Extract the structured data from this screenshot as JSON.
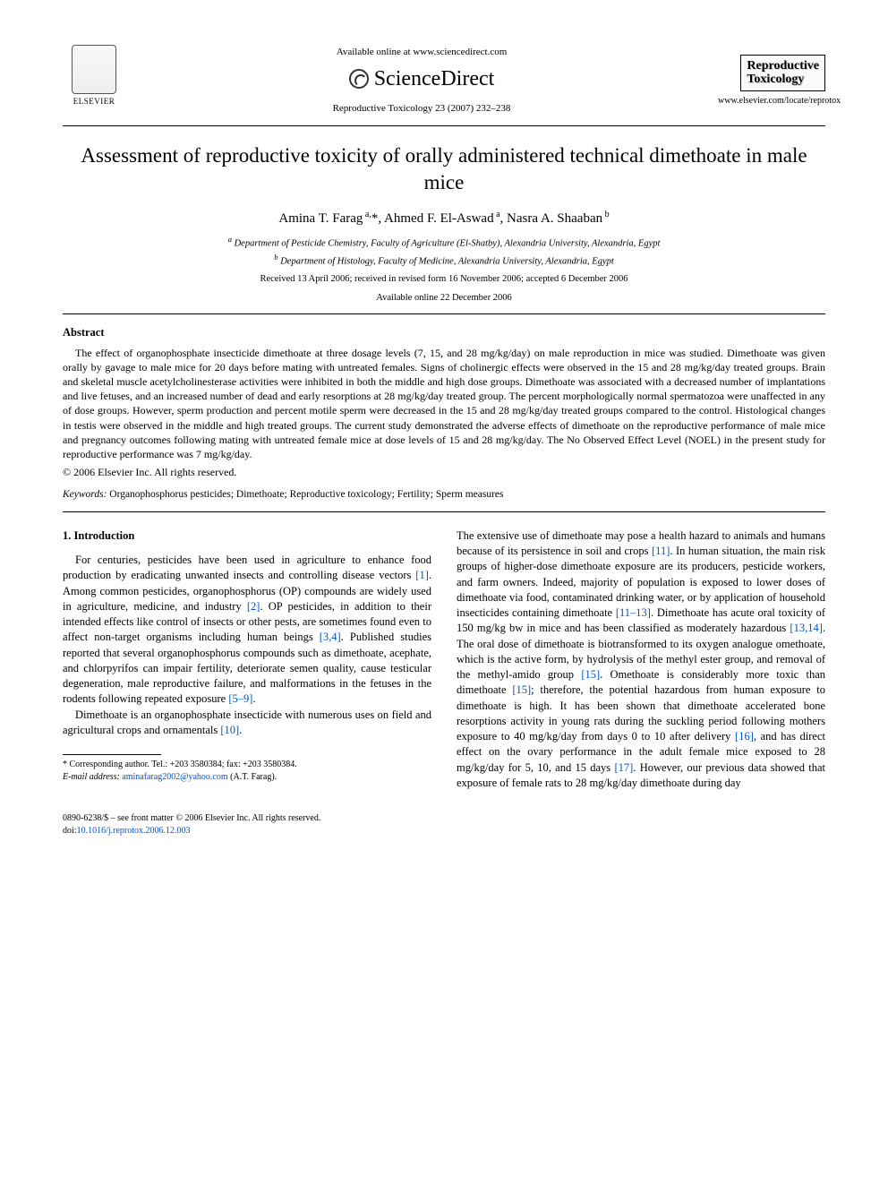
{
  "header": {
    "elsevier_label": "ELSEVIER",
    "available_line": "Available online at www.sciencedirect.com",
    "sd_brand": "ScienceDirect",
    "journal_ref": "Reproductive Toxicology 23 (2007) 232–238",
    "journal_box_line1": "Reproductive",
    "journal_box_line2": "Toxicology",
    "journal_url": "www.elsevier.com/locate/reprotox"
  },
  "title": "Assessment of reproductive toxicity of orally administered technical dimethoate in male mice",
  "authors_html": "Amina T. Farag <sup>a,</sup>*, Ahmed F. El-Aswad <sup>a</sup>, Nasra A. Shaaban <sup>b</sup>",
  "affiliations": {
    "a": "Department of Pesticide Chemistry, Faculty of Agriculture (El-Shatby), Alexandria University, Alexandria, Egypt",
    "b": "Department of Histology, Faculty of Medicine, Alexandria University, Alexandria, Egypt"
  },
  "dates": {
    "received": "Received 13 April 2006; received in revised form 16 November 2006; accepted 6 December 2006",
    "online": "Available online 22 December 2006"
  },
  "abstract_heading": "Abstract",
  "abstract_body": "The effect of organophosphate insecticide dimethoate at three dosage levels (7, 15, and 28 mg/kg/day) on male reproduction in mice was studied. Dimethoate was given orally by gavage to male mice for 20 days before mating with untreated females. Signs of cholinergic effects were observed in the 15 and 28 mg/kg/day treated groups. Brain and skeletal muscle acetylcholinesterase activities were inhibited in both the middle and high dose groups. Dimethoate was associated with a decreased number of implantations and live fetuses, and an increased number of dead and early resorptions at 28 mg/kg/day treated group. The percent morphologically normal spermatozoa were unaffected in any of dose groups. However, sperm production and percent motile sperm were decreased in the 15 and 28 mg/kg/day treated groups compared to the control. Histological changes in testis were observed in the middle and high treated groups. The current study demonstrated the adverse effects of dimethoate on the reproductive performance of male mice and pregnancy outcomes following mating with untreated female mice at dose levels of 15 and 28 mg/kg/day. The No Observed Effect Level (NOEL) in the present study for reproductive performance was 7 mg/kg/day.",
  "copyright": "© 2006 Elsevier Inc. All rights reserved.",
  "keywords_label": "Keywords:",
  "keywords": "Organophosphorus pesticides; Dimethoate; Reproductive toxicology; Fertility; Sperm measures",
  "intro_heading": "1.  Introduction",
  "intro_col1_p1_a": "For centuries, pesticides have been used in agriculture to enhance food production by eradicating unwanted insects and controlling disease vectors ",
  "intro_col1_p1_cite1": "[1]",
  "intro_col1_p1_b": ". Among common pesticides, organophosphorus (OP) compounds are widely used in agriculture, medicine, and industry ",
  "intro_col1_p1_cite2": "[2]",
  "intro_col1_p1_c": ". OP pesticides, in addition to their intended effects like control of insects or other pests, are sometimes found even to affect non-target organisms including human beings ",
  "intro_col1_p1_cite3": "[3,4]",
  "intro_col1_p1_d": ". Published studies reported that several organophosphorus compounds such as dimethoate, acephate, and chlorpyrifos can impair fertility, deteriorate semen quality, cause testicular degeneration, male reproductive failure, and malformations in the fetuses in the rodents following repeated exposure ",
  "intro_col1_p1_cite4": "[5–9]",
  "intro_col1_p1_e": ".",
  "intro_col1_p2_a": "Dimethoate is an organophosphate insecticide with numerous uses on field and agricultural crops and ornamentals ",
  "intro_col1_p2_cite1": "[10]",
  "intro_col1_p2_b": ".",
  "intro_col2_a": "The extensive use of dimethoate may pose a health hazard to animals and humans because of its persistence in soil and crops ",
  "intro_col2_cite1": "[11]",
  "intro_col2_b": ". In human situation, the main risk groups of higher-dose dimethoate exposure are its producers, pesticide workers, and farm owners. Indeed, majority of population is exposed to lower doses of dimethoate via food, contaminated drinking water, or by application of household insecticides containing dimethoate ",
  "intro_col2_cite2": "[11–13]",
  "intro_col2_c": ". Dimethoate has acute oral toxicity of 150 mg/kg bw in mice and has been classified as moderately hazardous ",
  "intro_col2_cite3": "[13,14]",
  "intro_col2_d": ". The oral dose of dimethoate is biotransformed to its oxygen analogue omethoate, which is the active form, by hydrolysis of the methyl ester group, and removal of the methyl-amido group ",
  "intro_col2_cite4": "[15]",
  "intro_col2_e": ". Omethoate is considerably more toxic than dimethoate ",
  "intro_col2_cite5": "[15]",
  "intro_col2_f": "; therefore, the potential hazardous from human exposure to dimethoate is high. It has been shown that dimethoate accelerated bone resorptions activity in young rats during the suckling period following mothers exposure to 40 mg/kg/day from days 0 to 10 after delivery ",
  "intro_col2_cite6": "[16]",
  "intro_col2_g": ", and has direct effect on the ovary performance in the adult female mice exposed to 28 mg/kg/day for 5, 10, and 15 days ",
  "intro_col2_cite7": "[17]",
  "intro_col2_h": ". However, our previous data showed that exposure of female rats to 28 mg/kg/day dimethoate during day",
  "footnote": {
    "corr": "* Corresponding author. Tel.: +203 3580384; fax: +203 3580384.",
    "email_label": "E-mail address:",
    "email": "aminafarag2002@yahoo.com",
    "email_tail": "(A.T. Farag)."
  },
  "footer": {
    "line1": "0890-6238/$ – see front matter © 2006 Elsevier Inc. All rights reserved.",
    "doi_label": "doi:",
    "doi": "10.1016/j.reprotox.2006.12.003"
  },
  "colors": {
    "link": "#0055cc",
    "text": "#000000",
    "bg": "#ffffff"
  }
}
